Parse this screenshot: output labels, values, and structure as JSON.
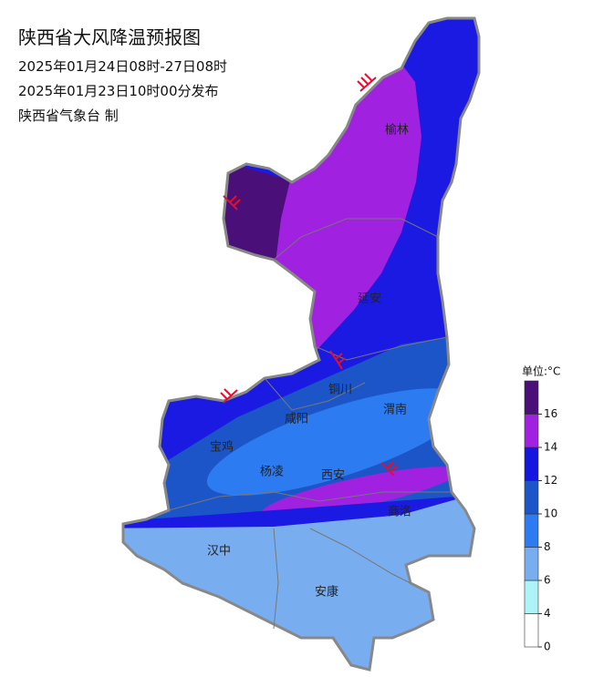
{
  "header": {
    "title": "陕西省大风降温预报图",
    "period": "2025年01月24日08时-27日08时",
    "issued": "2025年01月23日10时00分发布",
    "issuer": "陕西省气象台 制"
  },
  "cities": [
    "榆林",
    "延安",
    "铜川",
    "咸阳",
    "渭南",
    "宝鸡",
    "杨凌",
    "西安",
    "商洛",
    "汉中",
    "安康"
  ],
  "legend": {
    "title": "单位:°C",
    "ticks": [
      0,
      4,
      6,
      8,
      10,
      12,
      14,
      16
    ],
    "colors": [
      "#ffffff",
      "#aef3f8",
      "#78aef0",
      "#2c7bf0",
      "#1c55c8",
      "#1515e0",
      "#a021e0",
      "#4a0f78"
    ]
  }
}
